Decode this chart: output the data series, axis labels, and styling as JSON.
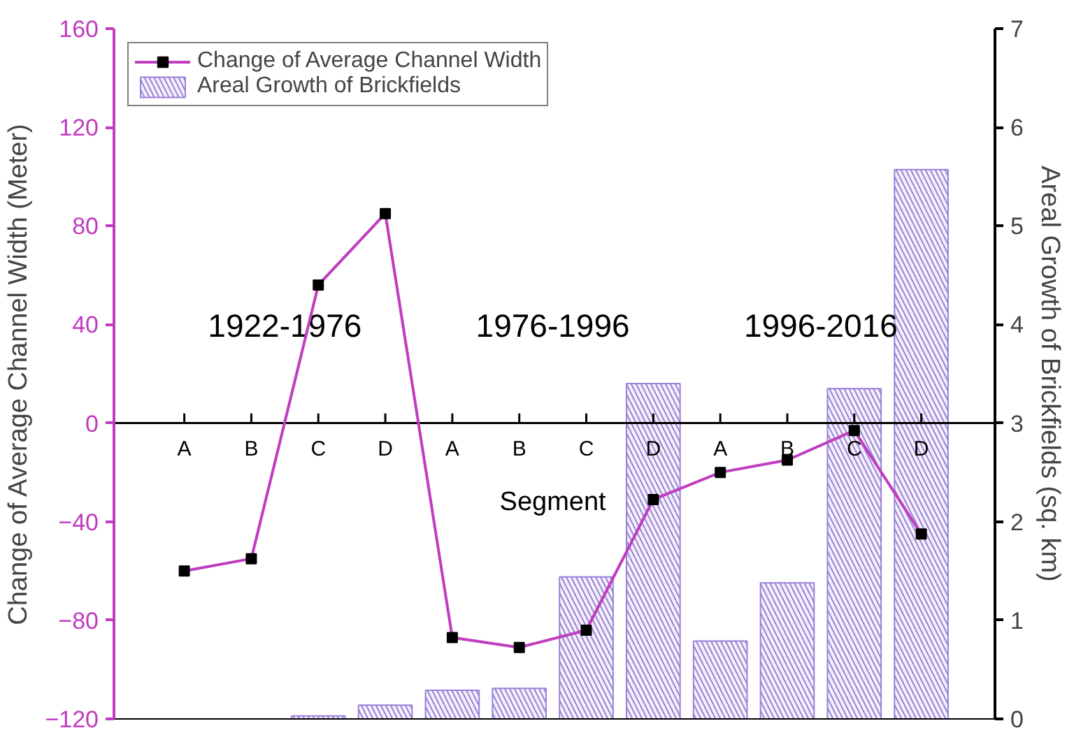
{
  "chart_data": {
    "type": "bar",
    "xlabel": "Segment",
    "ylabel": "Change of Average Channel Width (Meter)",
    "y2label": "Areal Growth of Brickfields (sq. km)",
    "categories": [
      "A",
      "B",
      "C",
      "D",
      "A",
      "B",
      "C",
      "D",
      "A",
      "B",
      "C",
      "D"
    ],
    "series": [
      {
        "name": "Change of Average Channel Width",
        "type": "line",
        "color": "#c03cc0",
        "marker": "square",
        "values": [
          -60,
          -55,
          56,
          85,
          -87,
          -91,
          -84,
          -31,
          -20,
          -15,
          -3,
          -45
        ]
      },
      {
        "name": "Areal Growth of Brickfields",
        "axis": "y2",
        "color": "#9a80d8",
        "values": [
          null,
          null,
          0.03,
          0.14,
          0.29,
          0.31,
          1.44,
          3.4,
          0.79,
          1.38,
          3.35,
          5.57
        ]
      }
    ],
    "ylim": [
      -120,
      160
    ],
    "yticks": [
      -120,
      -80,
      -40,
      0,
      40,
      80,
      120,
      160
    ],
    "y2lim": [
      0,
      7
    ],
    "y2ticks": [
      0,
      1,
      2,
      3,
      4,
      5,
      6,
      7
    ],
    "annotations": [
      "1922-1976",
      "1976-1996",
      "1996-2016"
    ],
    "legend": "top left",
    "grid": false
  }
}
